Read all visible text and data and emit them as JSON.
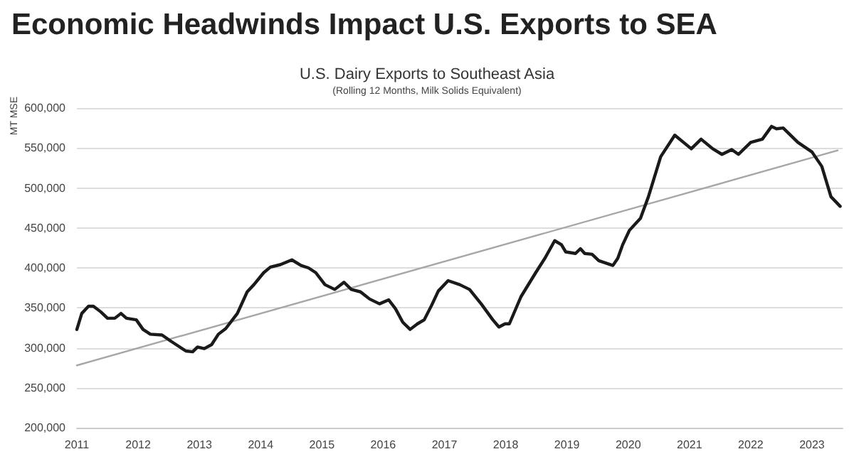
{
  "chart_data": {
    "type": "line",
    "title": "Economic Headwinds Impact U.S. Exports to SEA",
    "subtitle": "U.S. Dairy Exports to Southeast Asia",
    "annotations": [
      "(Rolling 12 Months, Milk Solids Equivalent)"
    ],
    "ylabel": "MT MSE",
    "marker": "none",
    "grid": "y",
    "xlim": [
      2011,
      2023.5
    ],
    "xticks": [
      2011,
      2012,
      2013,
      2014,
      2015,
      2016,
      2017,
      2018,
      2019,
      2020,
      2021,
      2022,
      2023
    ],
    "ylim": [
      200000,
      600000
    ],
    "yticks": [
      {
        "value": 200000,
        "label": "200,000"
      },
      {
        "value": 250000,
        "label": "250,000"
      },
      {
        "value": 300000,
        "label": "300,000"
      },
      {
        "value": 350000,
        "label": "350,000"
      },
      {
        "value": 400000,
        "label": "400,000"
      },
      {
        "value": 450000,
        "label": "450,000"
      },
      {
        "value": 500000,
        "label": "500,000"
      },
      {
        "value": 550000,
        "label": "550,000"
      },
      {
        "value": 600000,
        "label": "600,000"
      }
    ],
    "series": [
      {
        "type": "line",
        "color": "#a6a6a6",
        "x": [
          2011,
          2023.42
        ],
        "values": [
          278000,
          547000
        ]
      },
      {
        "type": "line",
        "color": "#1a1a1a",
        "x": [
          2011,
          2011.08,
          2011.19,
          2011.27,
          2011.39,
          2011.5,
          2011.62,
          2011.72,
          2011.81,
          2011.97,
          2012.08,
          2012.2,
          2012.39,
          2012.54,
          2012.66,
          2012.78,
          2012.89,
          2012.97,
          2013.08,
          2013.2,
          2013.31,
          2013.43,
          2013.62,
          2013.78,
          2013.89,
          2014.05,
          2014.16,
          2014.32,
          2014.51,
          2014.66,
          2014.78,
          2014.9,
          2015.05,
          2015.21,
          2015.36,
          2015.48,
          2015.63,
          2015.78,
          2015.94,
          2016.09,
          2016.2,
          2016.32,
          2016.44,
          2016.56,
          2016.67,
          2016.79,
          2016.9,
          2017.06,
          2017.25,
          2017.41,
          2017.6,
          2017.79,
          2017.89,
          2017.99,
          2018.06,
          2018.25,
          2018.49,
          2018.64,
          2018.8,
          2018.91,
          2018.98,
          2019.14,
          2019.22,
          2019.29,
          2019.41,
          2019.52,
          2019.75,
          2019.83,
          2019.91,
          2020.02,
          2020.2,
          2020.33,
          2020.53,
          2020.76,
          2021.03,
          2021.19,
          2021.38,
          2021.53,
          2021.69,
          2021.8,
          2022,
          2022.19,
          2022.34,
          2022.42,
          2022.53,
          2022.77,
          2023,
          2023.16,
          2023.31,
          2023.46
        ],
        "values": [
          323000,
          343000,
          352000,
          352000,
          345000,
          337000,
          337000,
          343000,
          337000,
          335000,
          323000,
          317000,
          316000,
          308000,
          302000,
          296000,
          295000,
          301000,
          299000,
          304000,
          317000,
          324000,
          343000,
          370000,
          379000,
          394000,
          401000,
          404000,
          410000,
          403000,
          400000,
          394000,
          379000,
          373000,
          382000,
          373000,
          370000,
          361000,
          355000,
          360000,
          349000,
          332000,
          323000,
          330000,
          335000,
          353000,
          371000,
          384000,
          379000,
          373000,
          355000,
          335000,
          326000,
          330000,
          330000,
          364000,
          394000,
          412000,
          434000,
          429000,
          420000,
          418000,
          424000,
          418000,
          417000,
          409000,
          403000,
          412000,
          429000,
          447000,
          462000,
          489000,
          539000,
          566000,
          549000,
          561000,
          549000,
          542000,
          548000,
          542000,
          557000,
          561000,
          577000,
          574000,
          575000,
          557000,
          545000,
          527000,
          489000,
          477000
        ]
      }
    ]
  }
}
